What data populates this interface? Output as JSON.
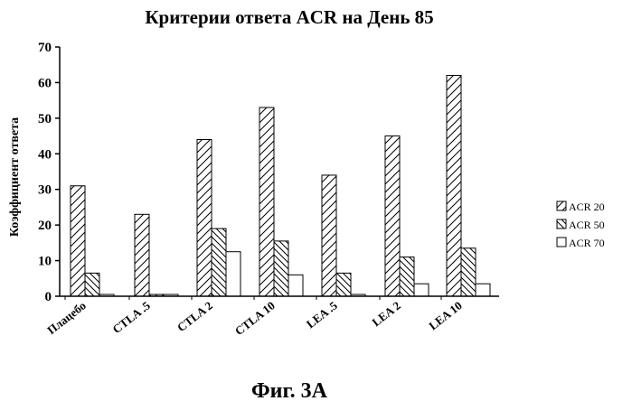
{
  "chart_data": {
    "type": "bar",
    "title": "Критерии ответа ACR на День 85",
    "caption": "Фиг. 3А",
    "xlabel": "",
    "ylabel": "Коэффициент ответа",
    "ylim": [
      0,
      70
    ],
    "yticks": [
      "0",
      "10",
      "20",
      "30",
      "40",
      "50",
      "60",
      "70"
    ],
    "categories": [
      "Плацебо",
      "CTLA .5",
      "CTLA 2",
      "CTLA 10",
      "LEA .5",
      "LEA 2",
      "LEA 10"
    ],
    "series": [
      {
        "name": "ACR 20",
        "values": [
          31,
          23,
          44,
          53,
          34,
          45,
          62
        ],
        "pattern": "hatch-forward"
      },
      {
        "name": "ACR 50",
        "values": [
          6.5,
          0.5,
          19,
          15.5,
          6.5,
          11,
          13.5
        ],
        "pattern": "hatch-backward"
      },
      {
        "name": "ACR 70",
        "values": [
          0.5,
          0.5,
          12.5,
          6,
          0.5,
          3.5,
          3.5
        ],
        "pattern": "empty"
      }
    ],
    "grid": false,
    "legend": "right"
  }
}
